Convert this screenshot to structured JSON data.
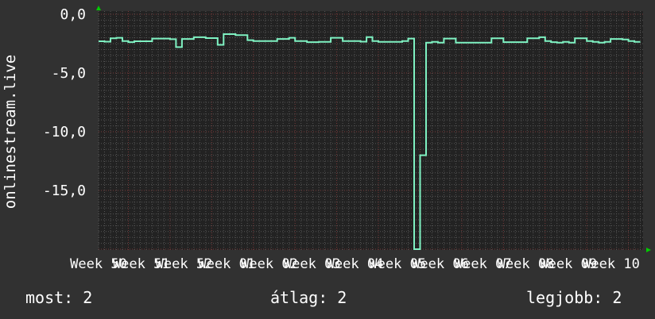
{
  "chart_data": {
    "type": "line",
    "ylabel": "onlinestream.live",
    "ylim": [
      -20.07,
      0.27
    ],
    "y_ticks": [
      "0,0",
      "-5,0",
      "-10,0",
      "-15,0"
    ],
    "y_tick_values": [
      0,
      -5,
      -10,
      -15
    ],
    "x_tick_labels": [
      "Week 50",
      "Week 51",
      "Week 52",
      "Week 01",
      "Week 02",
      "Week 03",
      "Week 04",
      "Week 05",
      "Week 06",
      "Week 07",
      "Week 08",
      "Week 09",
      "Week 10"
    ],
    "sampling": "daily",
    "grid": true,
    "series": [
      {
        "values": [
          -2.3,
          -2.33,
          -2.05,
          -2.0,
          -2.28,
          -2.37,
          -2.3,
          -2.3,
          -2.3,
          -2.07,
          -2.07,
          -2.07,
          -2.12,
          -2.8,
          -2.1,
          -2.1,
          -1.95,
          -1.95,
          -2.03,
          -2.03,
          -2.6,
          -1.69,
          -1.69,
          -1.78,
          -1.78,
          -2.2,
          -2.28,
          -2.28,
          -2.28,
          -2.28,
          -2.1,
          -2.1,
          -2.0,
          -2.28,
          -2.28,
          -2.37,
          -2.37,
          -2.35,
          -2.35,
          -2.0,
          -2.0,
          -2.28,
          -2.28,
          -2.28,
          -2.33,
          -1.94,
          -2.28,
          -2.35,
          -2.35,
          -2.35,
          -2.35,
          -2.28,
          -2.07,
          -20,
          -12,
          -2.41,
          -2.35,
          -2.41,
          -2.07,
          -2.07,
          -2.41,
          -2.41,
          -2.41,
          -2.41,
          -2.41,
          -2.41,
          -2.04,
          -2.04,
          -2.37,
          -2.37,
          -2.37,
          -2.37,
          -2.04,
          -2.04,
          -1.95,
          -2.28,
          -2.37,
          -2.41,
          -2.35,
          -2.41,
          -2.04,
          -2.04,
          -2.28,
          -2.35,
          -2.41,
          -2.35,
          -2.1,
          -2.1,
          -2.14,
          -2.28,
          -2.35
        ]
      }
    ],
    "colors": {
      "background": "#313131",
      "plot_background": "#222222",
      "line": "#7ff2c2",
      "grid_minor": "#555555",
      "grid_major": "#7a3a3a",
      "arrow": "#00cc00"
    }
  },
  "legend": {
    "current": "most: 2",
    "average": "átlag: 2",
    "max": "legjobb: 2"
  }
}
